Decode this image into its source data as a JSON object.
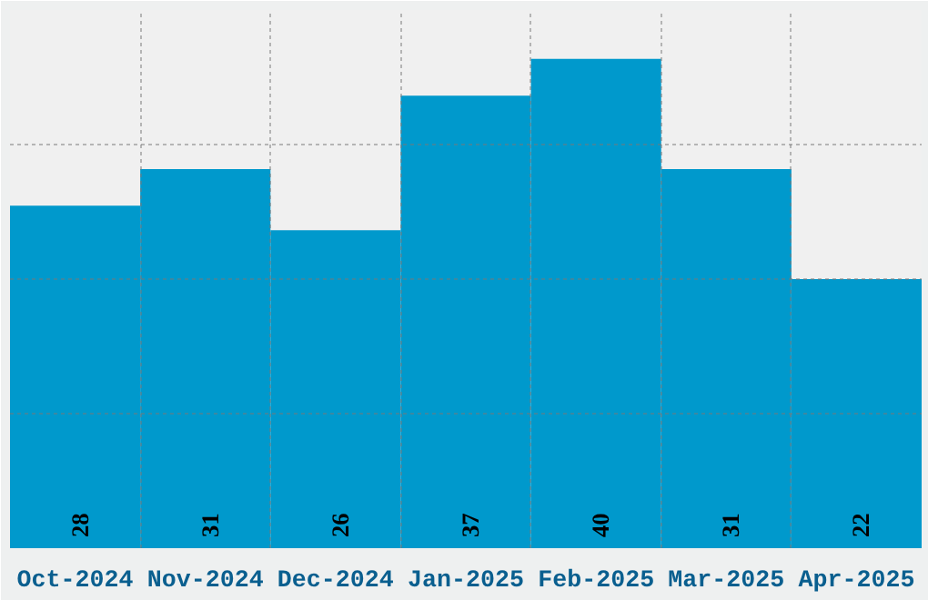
{
  "chart_data": {
    "type": "bar",
    "categories": [
      "Oct-2024",
      "Nov-2024",
      "Dec-2024",
      "Jan-2025",
      "Feb-2025",
      "Mar-2025",
      "Apr-2025"
    ],
    "values": [
      28,
      31,
      26,
      37,
      40,
      31,
      22
    ],
    "color": "#0099cc",
    "ylim": [
      0,
      44
    ],
    "yticks": [
      {
        "value": 11,
        "label": null
      },
      {
        "value": 22,
        "label": null
      },
      {
        "value": 33,
        "label": null
      },
      {
        "value": 44,
        "label": null
      }
    ],
    "tick_labels": "x",
    "grid": true,
    "data_labels": true
  }
}
